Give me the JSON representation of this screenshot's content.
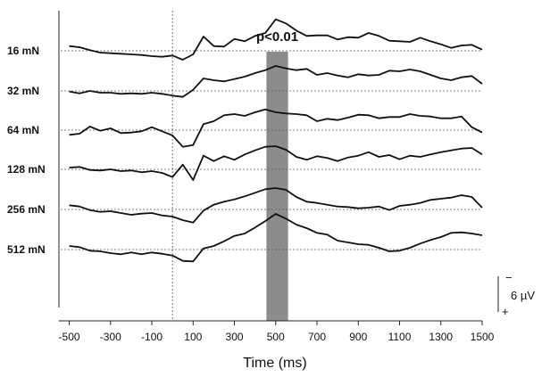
{
  "chart_data": {
    "type": "line",
    "xlabel": "Time (ms)",
    "xlim": [
      -550,
      1500
    ],
    "x_ticks": [
      -500,
      -300,
      -100,
      100,
      300,
      500,
      700,
      900,
      1100,
      1300,
      1500
    ],
    "x_tick_labels": [
      "-500",
      "-300",
      "-100",
      "100",
      "300",
      "500",
      "700",
      "900",
      "1100",
      "1300",
      "1500"
    ],
    "stimulus_onset_ms": 0,
    "significance": {
      "label": "p<0.01",
      "start_ms": 455,
      "end_ms": 560
    },
    "scale_bar": {
      "text": "6 µV",
      "value_uV": 6,
      "top_sign": "−",
      "bottom_sign": "+"
    },
    "row_labels": [
      "16 mN",
      "32 mN",
      "64 mN",
      "128 mN",
      "256 mN",
      "512 mN"
    ],
    "x": [
      -500,
      -450,
      -400,
      -350,
      -300,
      -250,
      -200,
      -150,
      -100,
      -50,
      0,
      50,
      100,
      150,
      200,
      250,
      300,
      350,
      400,
      450,
      500,
      550,
      600,
      650,
      700,
      750,
      800,
      850,
      900,
      950,
      1000,
      1050,
      1100,
      1150,
      1200,
      1250,
      1300,
      1350,
      1400,
      1450,
      1500
    ],
    "series": [
      {
        "name": "16 mN",
        "values": [
          -0.8,
          -0.6,
          -0.1,
          0.3,
          0.4,
          0.5,
          0.6,
          0.7,
          0.9,
          1.0,
          0.8,
          1.5,
          0.6,
          -2.4,
          -0.8,
          -0.7,
          -2.0,
          -1.6,
          -2.5,
          -3.0,
          -5.3,
          -4.6,
          -3.4,
          -2.5,
          -2.6,
          -2.6,
          -1.9,
          -2.3,
          -2.2,
          -3.0,
          -2.5,
          -1.7,
          -1.6,
          -1.5,
          -2.2,
          -1.6,
          -1.1,
          -0.5,
          -0.9,
          -1.0,
          -0.2
        ]
      },
      {
        "name": "32 mN",
        "values": [
          0.1,
          0.4,
          0.0,
          0.3,
          0.3,
          0.5,
          0.4,
          0.5,
          0.3,
          0.5,
          0.8,
          1.0,
          -0.2,
          -2.1,
          -1.8,
          -1.6,
          -2.0,
          -2.4,
          -3.0,
          -3.5,
          -4.2,
          -3.8,
          -3.5,
          -3.7,
          -2.7,
          -3.0,
          -2.6,
          -2.3,
          -2.8,
          -2.6,
          -2.7,
          -3.4,
          -3.3,
          -3.6,
          -3.3,
          -2.7,
          -2.1,
          -1.8,
          -2.3,
          -2.5,
          -1.2
        ]
      },
      {
        "name": "64 mN",
        "values": [
          0.8,
          0.6,
          -0.6,
          0.1,
          -0.3,
          0.5,
          0.4,
          0.2,
          -0.5,
          0.2,
          0.9,
          2.8,
          2.5,
          -1.0,
          -1.5,
          -2.5,
          -2.7,
          -2.4,
          -3.0,
          -3.5,
          -3.0,
          -2.8,
          -2.7,
          -2.5,
          -1.5,
          -1.9,
          -1.7,
          -2.1,
          -2.6,
          -2.5,
          -2.0,
          -2.2,
          -2.2,
          -2.7,
          -2.4,
          -2.3,
          -2.0,
          -2.0,
          -2.3,
          -0.5,
          0.4
        ]
      },
      {
        "name": "128 mN",
        "values": [
          -0.3,
          -0.4,
          0.1,
          0.2,
          0.0,
          0.3,
          0.2,
          0.5,
          0.3,
          0.6,
          1.3,
          -0.8,
          1.8,
          -2.3,
          -1.4,
          -2.2,
          -1.6,
          -2.5,
          -3.2,
          -3.8,
          -3.9,
          -3.3,
          -2.1,
          -1.6,
          -2.2,
          -1.9,
          -1.4,
          -2.0,
          -2.3,
          -2.9,
          -2.1,
          -2.4,
          -1.7,
          -2.3,
          -2.1,
          -2.5,
          -2.9,
          -3.2,
          -3.5,
          -3.6,
          -2.5
        ]
      },
      {
        "name": "256 mN",
        "values": [
          -0.7,
          -0.5,
          0.1,
          0.4,
          0.3,
          0.6,
          0.9,
          0.7,
          0.6,
          1.0,
          1.2,
          1.8,
          2.2,
          0.2,
          -0.8,
          -1.3,
          -1.7,
          -2.2,
          -2.8,
          -3.4,
          -3.6,
          -3.3,
          -2.1,
          -1.3,
          -1.1,
          -0.8,
          -0.5,
          -0.4,
          -0.2,
          -0.3,
          -0.5,
          0.1,
          -0.6,
          -0.8,
          -1.1,
          -1.6,
          -1.8,
          -2.0,
          -2.4,
          -2.1,
          -0.3
        ]
      },
      {
        "name": "512 mN",
        "values": [
          -0.6,
          -0.4,
          0.2,
          0.3,
          0.6,
          0.8,
          0.5,
          0.8,
          0.5,
          0.7,
          1.0,
          1.9,
          2.0,
          -0.2,
          -0.6,
          -1.4,
          -2.3,
          -2.7,
          -3.7,
          -4.8,
          -6.0,
          -5.2,
          -4.2,
          -3.6,
          -2.8,
          -2.5,
          -1.5,
          -1.2,
          -0.9,
          -0.8,
          -0.3,
          0.3,
          0.2,
          -0.3,
          -1.0,
          -1.6,
          -2.1,
          -2.8,
          -2.9,
          -2.7,
          -2.4
        ]
      }
    ]
  }
}
